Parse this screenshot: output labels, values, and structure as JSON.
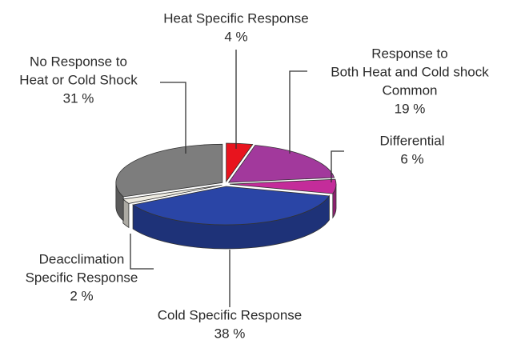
{
  "chart_data": {
    "type": "pie3d",
    "categories": [
      [
        "Heat Specific Response"
      ],
      [
        "Response to",
        "Both Heat and Cold shock",
        "Common"
      ],
      [
        "Differential"
      ],
      [
        "Cold Specific Response"
      ],
      [
        "Deacclimation",
        "Specific Response"
      ],
      [
        "No Response to",
        "Heat or Cold Shock"
      ]
    ],
    "values": [
      4,
      19,
      6,
      38,
      2,
      31
    ],
    "value_labels": [
      "4 %",
      "19 %",
      "6 %",
      "38 %",
      "2 %",
      "31 %"
    ],
    "colors": [
      "#e8141e",
      "#a2399c",
      "#c42c9a",
      "#2a45a6",
      "#efece2",
      "#7d7d7d"
    ]
  }
}
